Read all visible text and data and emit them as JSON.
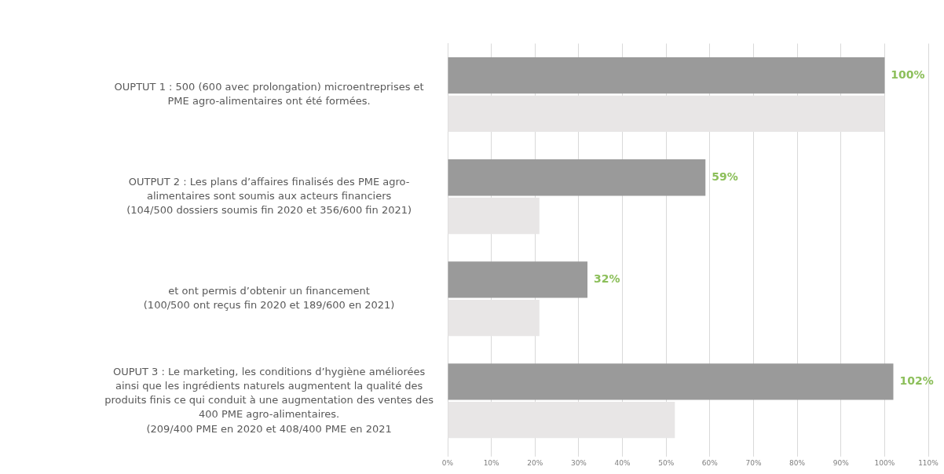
{
  "chart_data": {
    "type": "bar",
    "orientation": "horizontal",
    "categories": [
      "OUPTUT 1 : 500 (600 avec prolongation) microentreprises et\nPME agro-alimentaires ont été formées.",
      "OUTPUT 2 : Les plans d’affaires finalisés des PME agro-\nalimentaires sont soumis aux acteurs financiers\n(104/500 dossiers soumis fin 2020 et 356/600 fin 2021)",
      "et ont permis d’obtenir un financement\n(100/500 ont reçus fin 2020 et 189/600 en 2021)",
      "OUPUT 3 : Le marketing, les conditions d’hygiène améliorées\nainsi que les ingrédients naturels augmentent la qualité des\nproduits finis ce qui conduit à une augmentation des ventes des\n400 PME agro-alimentaires.\n(209/400 PME en 2020 et 408/400 PME en 2021"
    ],
    "series": [
      {
        "color": "#9a9a9a",
        "values": [
          100,
          59,
          32,
          102
        ],
        "value_labels": [
          "100%",
          "59%",
          "32%",
          "102%"
        ]
      },
      {
        "color": "#e8e6e6",
        "values": [
          100,
          21,
          21,
          52
        ]
      }
    ],
    "xlim": [
      0,
      110
    ],
    "xticks": [
      {
        "value": 0,
        "label": "0%"
      },
      {
        "value": 10,
        "label": "10%"
      },
      {
        "value": 20,
        "label": "20%"
      },
      {
        "value": 30,
        "label": "30%"
      },
      {
        "value": 40,
        "label": "40%"
      },
      {
        "value": 50,
        "label": "50%"
      },
      {
        "value": 60,
        "label": "60%"
      },
      {
        "value": 70,
        "label": "70%"
      },
      {
        "value": 80,
        "label": "80%"
      },
      {
        "value": 90,
        "label": "90%"
      },
      {
        "value": 100,
        "label": "100%"
      },
      {
        "value": 110,
        "label": "110%"
      }
    ],
    "grid": "x",
    "legend": false
  }
}
